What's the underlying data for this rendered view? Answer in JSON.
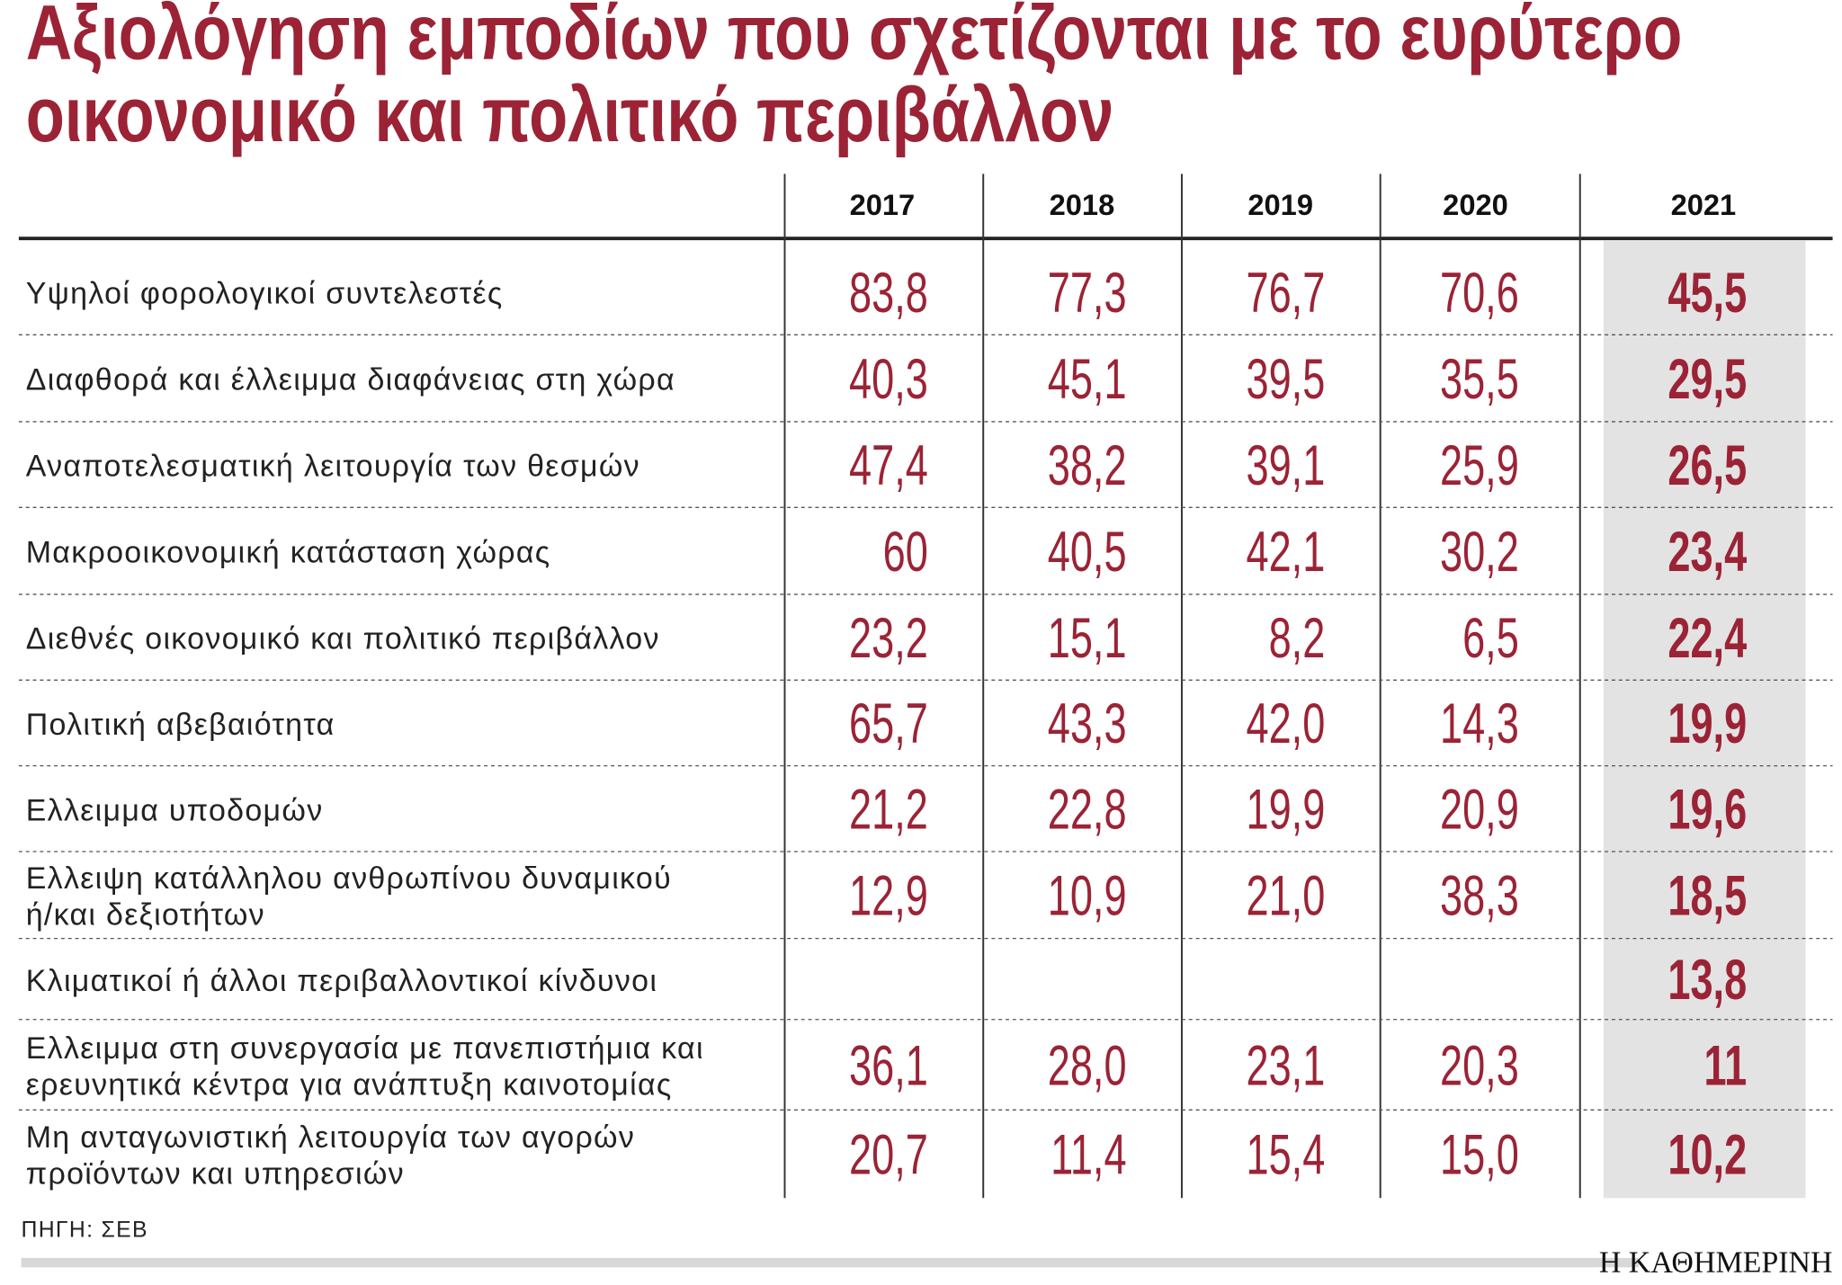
{
  "header": {
    "title": [
      "Αξιολόγηση εμποδίων που σχετίζονται με το ευρύτερο",
      "οικονομικό και πολιτικό περιβάλλον"
    ]
  },
  "table": {
    "columns": [
      "2017",
      "2018",
      "2019",
      "2020",
      "2021"
    ],
    "rows": [
      {
        "label": [
          "Υψηλοί φορολογικοί συντελεστές"
        ],
        "values": [
          "83,8",
          "77,3",
          "76,7",
          "70,6",
          "45,5"
        ]
      },
      {
        "label": [
          "Διαφθορά και έλλειμμα διαφάνειας στη χώρα"
        ],
        "values": [
          "40,3",
          "45,1",
          "39,5",
          "35,5",
          "29,5"
        ]
      },
      {
        "label": [
          "Αναποτελεσματική λειτουργία των θεσμών"
        ],
        "values": [
          "47,4",
          "38,2",
          "39,1",
          "25,9",
          "26,5"
        ]
      },
      {
        "label": [
          "Μακροοικονομική κατάσταση χώρας"
        ],
        "values": [
          "60",
          "40,5",
          "42,1",
          "30,2",
          "23,4"
        ]
      },
      {
        "label": [
          "Διεθνές οικονομικό και πολιτικό περιβάλλον"
        ],
        "values": [
          "23,2",
          "15,1",
          "8,2",
          "6,5",
          "22,4"
        ]
      },
      {
        "label": [
          "Πολιτική αβεβαιότητα"
        ],
        "values": [
          "65,7",
          "43,3",
          "42,0",
          "14,3",
          "19,9"
        ]
      },
      {
        "label": [
          "Ελλειμμα υποδομών"
        ],
        "values": [
          "21,2",
          "22,8",
          "19,9",
          "20,9",
          "19,6"
        ]
      },
      {
        "label": [
          "Ελλειψη κατάλληλου ανθρωπίνου δυναμικού",
          "ή/και δεξιοτήτων"
        ],
        "values": [
          "12,9",
          "10,9",
          "21,0",
          "38,3",
          "18,5"
        ]
      },
      {
        "label": [
          "Κλιματικοί ή άλλοι περιβαλλοντικοί κίνδυνοι"
        ],
        "values": [
          null,
          null,
          null,
          null,
          "13,8"
        ]
      },
      {
        "label": [
          "Ελλειμμα στη συνεργασία με πανεπιστήμια και",
          "ερευνητικά κέντρα για ανάπτυξη καινοτομίας"
        ],
        "values": [
          "36,1",
          "28,0",
          "23,1",
          "20,3",
          "11"
        ]
      },
      {
        "label": [
          "Μη ανταγωνιστική λειτουργία των αγορών",
          "προϊόντων και υπηρεσιών"
        ],
        "values": [
          "20,7",
          "11,4",
          "15,4",
          "15,0",
          "10,2"
        ]
      }
    ]
  },
  "footer": {
    "source": "ΠΗΓΗ: ΣΕΒ",
    "brand": "Η ΚΑΘΗΜΕΡΙΝΗ"
  }
}
